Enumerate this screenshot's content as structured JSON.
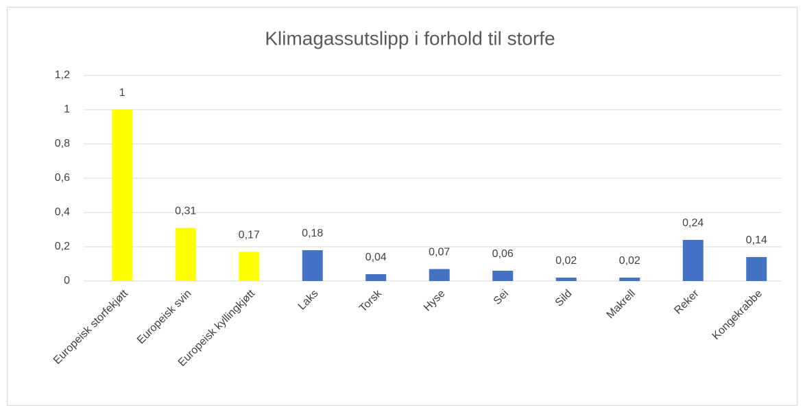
{
  "chart_data": {
    "type": "bar",
    "title": "Klimagassutslipp i forhold til storfe",
    "categories": [
      "Europeisk storfekjøtt",
      "Europeisk svin",
      "Europeisk kyllingkjøtt",
      "Laks",
      "Torsk",
      "Hyse",
      "Sei",
      "Sild",
      "Makrell",
      "Reker",
      "Kongekrabbe"
    ],
    "values": [
      1,
      0.31,
      0.17,
      0.18,
      0.04,
      0.07,
      0.06,
      0.02,
      0.02,
      0.24,
      0.14
    ],
    "value_labels": [
      "1",
      "0,31",
      "0,17",
      "0,18",
      "0,04",
      "0,07",
      "0,06",
      "0,02",
      "0,02",
      "0,24",
      "0,14"
    ],
    "colors": [
      "#ffff00",
      "#ffff00",
      "#ffff00",
      "#4472c4",
      "#4472c4",
      "#4472c4",
      "#4472c4",
      "#4472c4",
      "#4472c4",
      "#4472c4",
      "#4472c4"
    ],
    "ylim": [
      0,
      1.2
    ],
    "yticks": [
      0,
      {
        "value": 0.2,
        "label": "0,2"
      },
      {
        "value": 0.4,
        "label": "0,4"
      },
      {
        "value": 0.6,
        "label": "0,6"
      },
      {
        "value": 0.8,
        "label": "0,8"
      },
      1,
      {
        "value": 1.2,
        "label": "1,2"
      }
    ],
    "grid": true
  }
}
